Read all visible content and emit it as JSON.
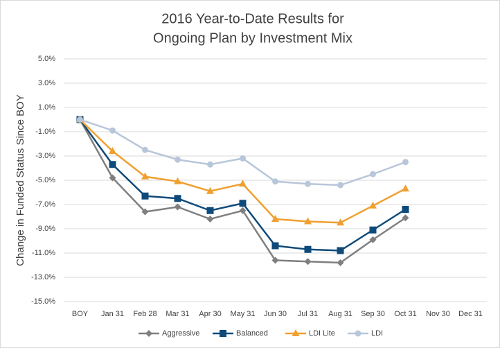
{
  "chart_data": {
    "type": "line",
    "title": [
      "2016 Year-to-Date Results for",
      "Ongoing Plan by Investment Mix"
    ],
    "y_axis_label": "Change in Funded Status Since BOY",
    "categories": [
      "BOY",
      "Jan 31",
      "Feb 28",
      "Mar 31",
      "Apr 30",
      "May 31",
      "Jun 30",
      "Jul 31",
      "Aug 31",
      "Sep 30",
      "Oct 31",
      "Nov 30",
      "Dec 31"
    ],
    "series": [
      {
        "name": "Aggressive",
        "color": "#7f7f7f",
        "marker": "diamond",
        "values": [
          0,
          -4.8,
          -7.6,
          -7.2,
          -8.2,
          -7.5,
          -11.6,
          -11.7,
          -11.8,
          -9.9,
          -8.1,
          null,
          null
        ]
      },
      {
        "name": "Balanced",
        "color": "#0e4a7a",
        "marker": "square",
        "values": [
          0,
          -3.7,
          -6.3,
          -6.5,
          -7.5,
          -6.9,
          -10.4,
          -10.7,
          -10.8,
          -9.1,
          -7.4,
          null,
          null
        ]
      },
      {
        "name": "LDI Lite",
        "color": "#f0a030",
        "marker": "triangle",
        "values": [
          0,
          -2.6,
          -4.7,
          -5.1,
          -5.9,
          -5.3,
          -8.2,
          -8.4,
          -8.5,
          -7.1,
          -5.7,
          null,
          null
        ]
      },
      {
        "name": "LDI",
        "color": "#b8c6da",
        "marker": "circle",
        "values": [
          0,
          -0.9,
          -2.5,
          -3.3,
          -3.7,
          -3.2,
          -5.1,
          -5.3,
          -5.4,
          -4.5,
          -3.5,
          null,
          null
        ]
      }
    ],
    "ylim": [
      -15,
      5
    ],
    "yticks": [
      {
        "value": 5,
        "label": "5.0%"
      },
      {
        "value": 3,
        "label": "3.0%"
      },
      {
        "value": 1,
        "label": "1.0%"
      },
      {
        "value": -1,
        "label": "-1.0%"
      },
      {
        "value": -3,
        "label": "-3.0%"
      },
      {
        "value": -5,
        "label": "-5.0%"
      },
      {
        "value": -7,
        "label": "-7.0%"
      },
      {
        "value": -9,
        "label": "-9.0%"
      },
      {
        "value": -11,
        "label": "-11.0%"
      },
      {
        "value": -13,
        "label": "-13.0%"
      },
      {
        "value": -15,
        "label": "-15.0%"
      }
    ],
    "grid": true,
    "legend": "bottom"
  }
}
